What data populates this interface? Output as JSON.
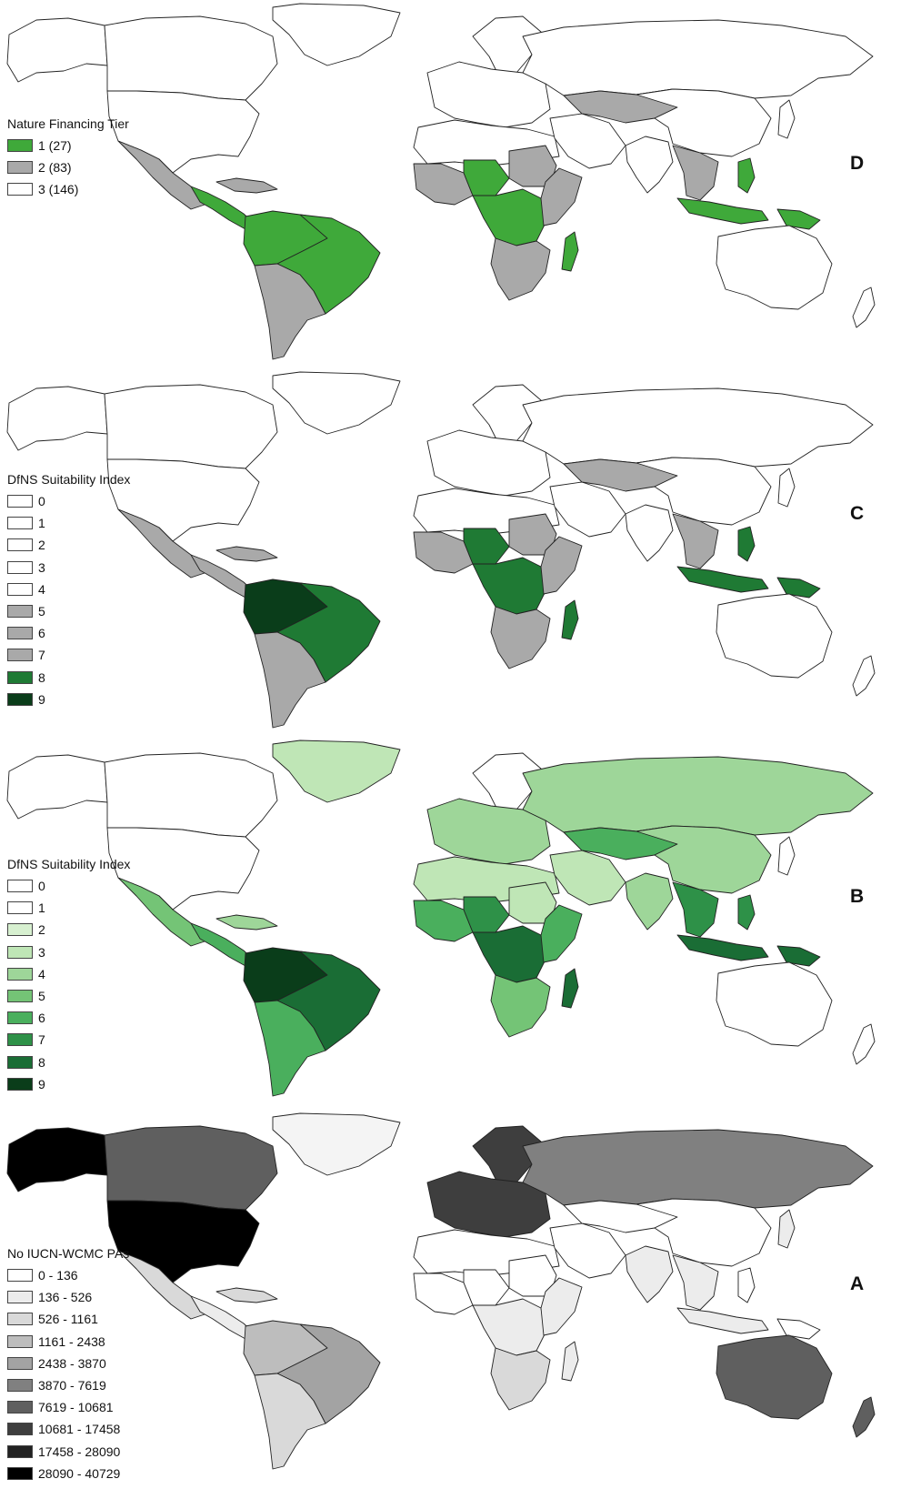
{
  "panels": [
    {
      "id": "D",
      "letter": "D",
      "legend_title": "Nature Financing Tier",
      "legend": [
        {
          "label": "1 (27)",
          "color": "#3fa93a"
        },
        {
          "label": "2 (83)",
          "color": "#a9a9a9"
        },
        {
          "label": "3 (146)",
          "color": "#ffffff"
        }
      ]
    },
    {
      "id": "C",
      "letter": "C",
      "legend_title": "DfNS Suitability Index",
      "legend": [
        {
          "label": "0",
          "color": "#ffffff"
        },
        {
          "label": "1",
          "color": "#ffffff"
        },
        {
          "label": "2",
          "color": "#ffffff"
        },
        {
          "label": "3",
          "color": "#ffffff"
        },
        {
          "label": "4",
          "color": "#ffffff"
        },
        {
          "label": "5",
          "color": "#a9a9a9"
        },
        {
          "label": "6",
          "color": "#a9a9a9"
        },
        {
          "label": "7",
          "color": "#a9a9a9"
        },
        {
          "label": "8",
          "color": "#1f7a34"
        },
        {
          "label": "9",
          "color": "#0a3d1a"
        }
      ]
    },
    {
      "id": "B",
      "letter": "B",
      "legend_title": "DfNS Suitability Index",
      "legend": [
        {
          "label": "0",
          "color": "#ffffff"
        },
        {
          "label": "1",
          "color": "#ffffff"
        },
        {
          "label": "2",
          "color": "#d7f0d0"
        },
        {
          "label": "3",
          "color": "#bfe6b6"
        },
        {
          "label": "4",
          "color": "#9ed699"
        },
        {
          "label": "5",
          "color": "#74c476"
        },
        {
          "label": "6",
          "color": "#4aaf5d"
        },
        {
          "label": "7",
          "color": "#2e9148"
        },
        {
          "label": "8",
          "color": "#1a6d35"
        },
        {
          "label": "9",
          "color": "#0a3d1a"
        }
      ]
    },
    {
      "id": "A",
      "letter": "A",
      "legend_title": "No IUCN-WCMC PAs",
      "legend": [
        {
          "label": "0 - 136",
          "color": "#ffffff"
        },
        {
          "label": "136 - 526",
          "color": "#ececec"
        },
        {
          "label": "526 - 1161",
          "color": "#d9d9d9"
        },
        {
          "label": "1161 - 2438",
          "color": "#bdbdbd"
        },
        {
          "label": "2438 - 3870",
          "color": "#a3a3a3"
        },
        {
          "label": "3870 - 7619",
          "color": "#808080"
        },
        {
          "label": "7619 - 10681",
          "color": "#5f5f5f"
        },
        {
          "label": "10681 - 17458",
          "color": "#3e3e3e"
        },
        {
          "label": "17458 - 28090",
          "color": "#222222"
        },
        {
          "label": "28090 - 40729",
          "color": "#000000"
        }
      ]
    }
  ],
  "region_fill": {
    "D": {
      "greenland": "#ffffff",
      "canada": "#ffffff",
      "alaska": "#ffffff",
      "usa": "#ffffff",
      "mexico": "#a9a9a9",
      "central_america": "#3fa93a",
      "caribbean": "#a9a9a9",
      "south_america_north": "#3fa93a",
      "brazil": "#3fa93a",
      "south_america_south": "#a9a9a9",
      "europe": "#ffffff",
      "scandinavia": "#ffffff",
      "russia": "#ffffff",
      "north_africa": "#ffffff",
      "west_africa": "#a9a9a9",
      "sahel": "#3fa93a",
      "sudan": "#a9a9a9",
      "central_africa": "#3fa93a",
      "east_africa": "#a9a9a9",
      "southern_africa": "#a9a9a9",
      "madagascar": "#3fa93a",
      "middle_east": "#ffffff",
      "central_asia": "#a9a9a9",
      "india": "#ffffff",
      "china": "#ffffff",
      "southeast_asia": "#a9a9a9",
      "indonesia": "#3fa93a",
      "philippines": "#3fa93a",
      "new_guinea": "#3fa93a",
      "japan": "#ffffff",
      "australia": "#ffffff",
      "new_zealand": "#ffffff"
    },
    "C": {
      "greenland": "#ffffff",
      "canada": "#ffffff",
      "alaska": "#ffffff",
      "usa": "#ffffff",
      "mexico": "#a9a9a9",
      "central_america": "#a9a9a9",
      "caribbean": "#a9a9a9",
      "south_america_north": "#0a3d1a",
      "brazil": "#1f7a34",
      "south_america_south": "#a9a9a9",
      "europe": "#ffffff",
      "scandinavia": "#ffffff",
      "russia": "#ffffff",
      "north_africa": "#ffffff",
      "west_africa": "#a9a9a9",
      "sahel": "#1f7a34",
      "sudan": "#a9a9a9",
      "central_africa": "#1f7a34",
      "east_africa": "#a9a9a9",
      "southern_africa": "#a9a9a9",
      "madagascar": "#1f7a34",
      "middle_east": "#ffffff",
      "central_asia": "#a9a9a9",
      "india": "#ffffff",
      "china": "#ffffff",
      "southeast_asia": "#a9a9a9",
      "indonesia": "#1f7a34",
      "philippines": "#1f7a34",
      "new_guinea": "#1f7a34",
      "japan": "#ffffff",
      "australia": "#ffffff",
      "new_zealand": "#ffffff"
    },
    "B": {
      "greenland": "#bfe6b6",
      "canada": "#ffffff",
      "alaska": "#ffffff",
      "usa": "#ffffff",
      "mexico": "#74c476",
      "central_america": "#4aaf5d",
      "caribbean": "#9ed699",
      "south_america_north": "#0a3d1a",
      "brazil": "#1a6d35",
      "south_america_south": "#4aaf5d",
      "europe": "#9ed699",
      "scandinavia": "#ffffff",
      "russia": "#9ed699",
      "north_africa": "#bfe6b6",
      "west_africa": "#4aaf5d",
      "sahel": "#2e9148",
      "sudan": "#bfe6b6",
      "central_africa": "#1a6d35",
      "east_africa": "#4aaf5d",
      "southern_africa": "#74c476",
      "madagascar": "#1a6d35",
      "middle_east": "#bfe6b6",
      "central_asia": "#4aaf5d",
      "india": "#9ed699",
      "china": "#9ed699",
      "southeast_asia": "#2e9148",
      "indonesia": "#1a6d35",
      "philippines": "#2e9148",
      "new_guinea": "#1a6d35",
      "japan": "#ffffff",
      "australia": "#ffffff",
      "new_zealand": "#ffffff"
    },
    "A": {
      "greenland": "#f4f4f4",
      "canada": "#5f5f5f",
      "alaska": "#000000",
      "usa": "#000000",
      "mexico": "#d9d9d9",
      "central_america": "#ececec",
      "caribbean": "#d9d9d9",
      "south_america_north": "#bdbdbd",
      "brazil": "#a3a3a3",
      "south_america_south": "#d9d9d9",
      "europe": "#3e3e3e",
      "scandinavia": "#3e3e3e",
      "russia": "#808080",
      "north_africa": "#ffffff",
      "west_africa": "#ffffff",
      "sahel": "#ffffff",
      "sudan": "#ffffff",
      "central_africa": "#ececec",
      "east_africa": "#ececec",
      "southern_africa": "#d9d9d9",
      "madagascar": "#ececec",
      "middle_east": "#ffffff",
      "central_asia": "#ffffff",
      "india": "#ececec",
      "china": "#ffffff",
      "southeast_asia": "#ececec",
      "indonesia": "#ececec",
      "philippines": "#ffffff",
      "new_guinea": "#ffffff",
      "japan": "#ececec",
      "australia": "#5f5f5f",
      "new_zealand": "#5f5f5f"
    }
  }
}
